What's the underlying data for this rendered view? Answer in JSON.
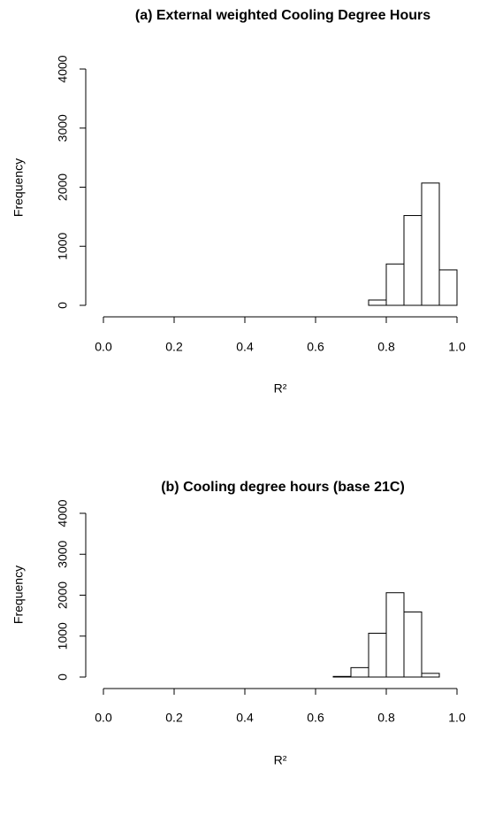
{
  "chart_data": [
    {
      "type": "histogram",
      "title": "(a) External weighted Cooling Degree Hours",
      "x_label": "R²",
      "y_label": "Frequency",
      "bins": [
        0,
        0.05,
        0.1,
        0.15,
        0.2,
        0.25,
        0.3,
        0.35,
        0.4,
        0.45,
        0.5,
        0.55,
        0.6,
        0.65,
        0.7,
        0.75,
        0.8,
        0.85,
        0.9,
        0.95,
        1
      ],
      "values": [
        0,
        0,
        0,
        0,
        0,
        0,
        0,
        0,
        0,
        0,
        0,
        0,
        0,
        0,
        0,
        90,
        700,
        1520,
        2070,
        600
      ],
      "color": "#ffffff",
      "xlim": [
        0,
        1
      ],
      "xticks": [
        {
          "value": 0,
          "label": "0.0"
        },
        0.2,
        0.4,
        0.6,
        0.8,
        {
          "value": 1,
          "label": "1.0"
        }
      ],
      "ylim": [
        0,
        4000
      ],
      "yticks": [
        0,
        1000,
        2000,
        3000,
        4000
      ]
    },
    {
      "type": "histogram",
      "title": "(b) Cooling degree hours (base 21C)",
      "x_label": "R²",
      "y_label": "Frequency",
      "bins": [
        0,
        0.05,
        0.1,
        0.15,
        0.2,
        0.25,
        0.3,
        0.35,
        0.4,
        0.45,
        0.5,
        0.55,
        0.6,
        0.65,
        0.7,
        0.75,
        0.8,
        0.85,
        0.9,
        0.95,
        1
      ],
      "values": [
        0,
        0,
        0,
        0,
        0,
        0,
        0,
        0,
        0,
        0,
        0,
        0,
        0,
        15,
        230,
        1070,
        2060,
        1590,
        90,
        0
      ],
      "color": "#ffffff",
      "xlim": [
        0,
        1
      ],
      "xticks": [
        {
          "value": 0,
          "label": "0.0"
        },
        0.2,
        0.4,
        0.6,
        0.8,
        {
          "value": 1,
          "label": "1.0"
        }
      ],
      "ylim": [
        0,
        4000
      ],
      "yticks": [
        0,
        1000,
        2000,
        3000,
        4000
      ]
    }
  ]
}
